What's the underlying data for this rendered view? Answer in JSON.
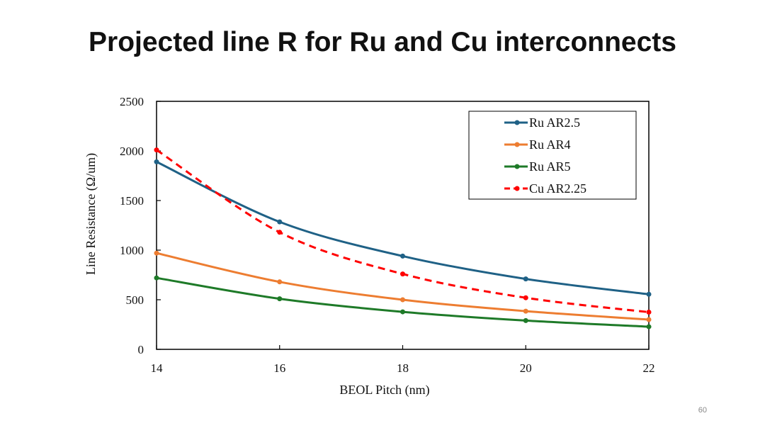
{
  "slide": {
    "title": "Projected line R for Ru and Cu interconnects",
    "page_number": "60"
  },
  "chart_data": {
    "type": "line",
    "xlabel": "BEOL Pitch (nm)",
    "ylabel": "Line Resistance (Ω/um)",
    "xlim": [
      14,
      22
    ],
    "ylim": [
      0,
      2500
    ],
    "xticks": [
      14,
      16,
      18,
      20,
      22
    ],
    "yticks": [
      0,
      500,
      1000,
      1500,
      2000,
      2500
    ],
    "x": [
      14,
      16,
      18,
      20,
      22
    ],
    "legend_position": "top-right",
    "grid": false,
    "series": [
      {
        "name": "Ru AR2.5",
        "values": [
          1890,
          1285,
          940,
          710,
          555
        ],
        "color": "#1f6186",
        "dashed": false
      },
      {
        "name": "Ru AR4",
        "values": [
          970,
          680,
          500,
          385,
          300
        ],
        "color": "#ed7d31",
        "dashed": false
      },
      {
        "name": "Ru AR5",
        "values": [
          720,
          510,
          378,
          290,
          228
        ],
        "color": "#1e7a28",
        "dashed": false
      },
      {
        "name": "Cu AR2.25",
        "values": [
          2010,
          1180,
          760,
          520,
          375
        ],
        "color": "#ff0000",
        "dashed": true
      }
    ]
  }
}
